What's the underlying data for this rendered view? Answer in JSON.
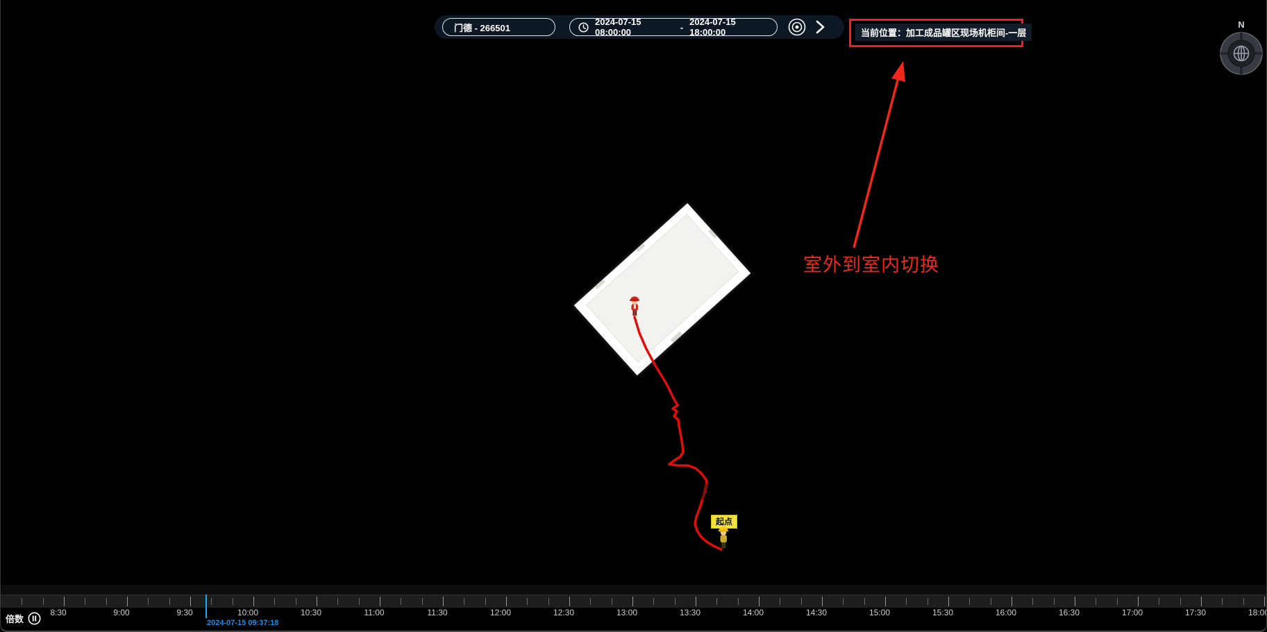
{
  "top_bar": {
    "device_select": "门德 - 266501",
    "time_range": {
      "start": "2024-07-15 08:00:00",
      "separator": "-",
      "end": "2024-07-15 18:00:00"
    }
  },
  "location_banner": {
    "text": "当前位置：加工成品罐区现场机柜间-一层"
  },
  "annotation": {
    "note": "室外到室内切换",
    "color": "#f0281c"
  },
  "compass": {
    "north": "N"
  },
  "map": {
    "start_label": "起点",
    "trajectory_color": "#e00d0d",
    "trajectory": [
      [
        913,
        457
      ],
      [
        920,
        480
      ],
      [
        930,
        503
      ],
      [
        943,
        527
      ],
      [
        957,
        550
      ],
      [
        963,
        561
      ],
      [
        969,
        574
      ],
      [
        975,
        584
      ],
      [
        968,
        589
      ],
      [
        974,
        593
      ],
      [
        970,
        600
      ],
      [
        976,
        605
      ],
      [
        977,
        614
      ],
      [
        980,
        629
      ],
      [
        982,
        642
      ],
      [
        983,
        652
      ],
      [
        979,
        658
      ],
      [
        970,
        664
      ],
      [
        963,
        669
      ],
      [
        975,
        671
      ],
      [
        990,
        671
      ],
      [
        1001,
        675
      ],
      [
        1010,
        683
      ],
      [
        1017,
        693
      ],
      [
        1015,
        706
      ],
      [
        1011,
        719
      ],
      [
        1007,
        732
      ],
      [
        1002,
        745
      ],
      [
        1000,
        755
      ],
      [
        1003,
        765
      ],
      [
        1009,
        774
      ],
      [
        1017,
        781
      ],
      [
        1027,
        787
      ],
      [
        1038,
        792
      ]
    ],
    "trajectory_dark_segment": [
      [
        1016,
        697
      ],
      [
        1011,
        720
      ]
    ]
  },
  "playback": {
    "speed_label": "倍数",
    "current_timestamp": "2024-07-15 09:37:18",
    "timeline_labels": [
      "8:30",
      "9:00",
      "9:30",
      "10:00",
      "10:30",
      "11:00",
      "11:30",
      "12:00",
      "12:30",
      "13:00",
      "13:30",
      "14:00",
      "14:30",
      "15:00",
      "15:30",
      "16:00",
      "16:30",
      "17:00",
      "17:30",
      "18:00"
    ]
  }
}
